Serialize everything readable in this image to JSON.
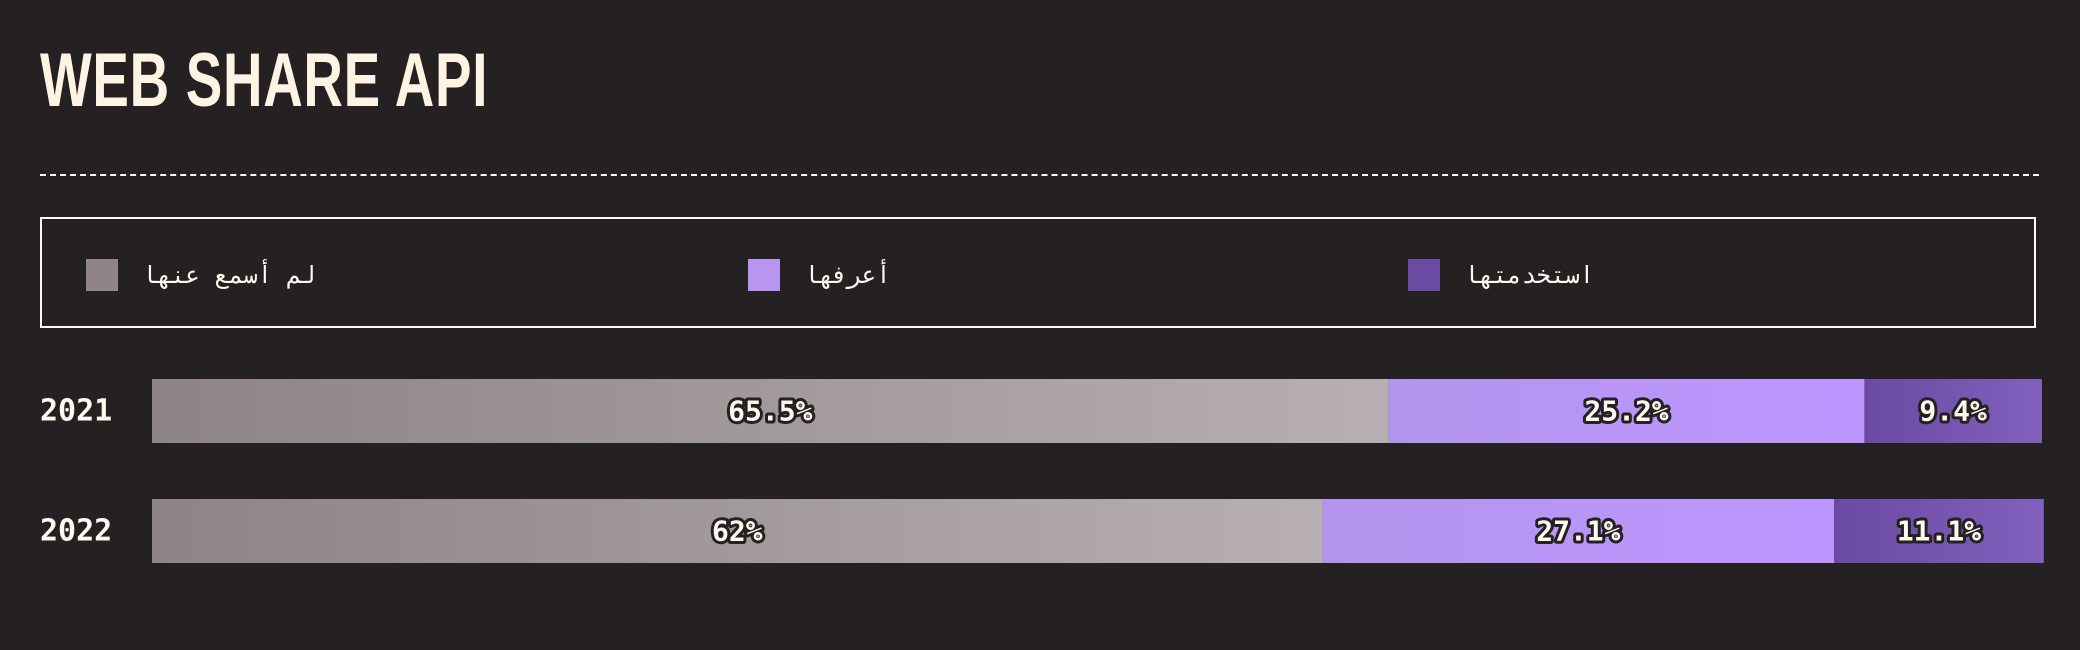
{
  "title": "WEB SHARE API",
  "colors": {
    "background": "#252123",
    "text": "#fff8ee"
  },
  "legend": [
    {
      "label": "لم أسمع عنها",
      "color": "#918489"
    },
    {
      "label": "أعرفها",
      "color": "#b795f0"
    },
    {
      "label": "استخدمتها",
      "color": "#6a4aa2"
    }
  ],
  "chart_data": {
    "type": "bar",
    "orientation": "horizontal",
    "stacked": true,
    "normalized_to": 100,
    "categories": [
      "2021",
      "2022"
    ],
    "series": [
      {
        "name": "لم أسمع عنها",
        "values": [
          65.5,
          62
        ],
        "labels": [
          "65.5%",
          "62%"
        ],
        "color_start": "#8e8388",
        "color_end": "#b7afb0"
      },
      {
        "name": "أعرفها",
        "values": [
          25.2,
          27.1
        ],
        "labels": [
          "25.2%",
          "27.1%"
        ],
        "color_start": "#b395ee",
        "color_end": "#bd95ff"
      },
      {
        "name": "استخدمتها",
        "values": [
          9.4,
          11.1
        ],
        "labels": [
          "9.4%",
          "11.1%"
        ],
        "color_start": "#6a4aa2",
        "color_end": "#8260be"
      }
    ],
    "legend_position": "top",
    "grid": false
  }
}
